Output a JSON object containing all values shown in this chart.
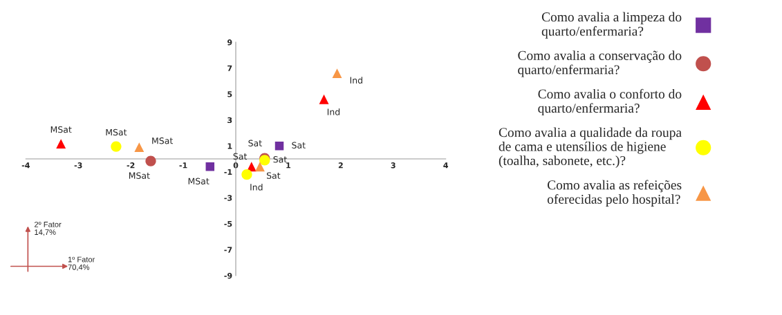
{
  "chart_data": {
    "type": "scatter",
    "xlim": [
      -4,
      4
    ],
    "xticks": [
      -4,
      -3,
      -2,
      -1,
      0,
      1,
      2,
      3,
      4
    ],
    "ylim": [
      -9,
      9
    ],
    "yticks": [
      -9,
      -7,
      -5,
      -3,
      -1,
      1,
      3,
      5,
      7,
      9
    ],
    "grid": false,
    "legend": "right",
    "series": [
      {
        "name": "Como avalia a limpeza do\nquarto/enfermaria?",
        "color": "#7030a0",
        "marker": "square",
        "x": [
          -0.49,
          0.83
        ],
        "values": [
          -0.59,
          1.0
        ],
        "value_labels": [
          "MSat",
          "Sat"
        ]
      },
      {
        "name": "Como avalia a conservação do\nquarto/enfermaria?",
        "color": "#c0504d",
        "marker": "circle",
        "x": [
          -1.62,
          0.55
        ],
        "values": [
          -0.16,
          0.05
        ],
        "value_labels": [
          "MSat",
          "Sat"
        ]
      },
      {
        "name": "Como avalia o conforto do\nquarto/enfermaria?",
        "color": "#ff0000",
        "marker": "triangle",
        "x": [
          -3.33,
          1.68,
          0.3
        ],
        "values": [
          1.17,
          4.6,
          -0.6
        ],
        "value_labels": [
          "MSat",
          "Ind",
          "Sat"
        ]
      },
      {
        "name": "Como avalia a qualidade da roupa\nde cama e utensílios de higiene\n(toalha, sabonete, etc.)?",
        "color": "#ffff00",
        "marker": "circle",
        "x": [
          -2.28,
          0.55,
          0.21
        ],
        "values": [
          0.96,
          -0.1,
          -1.2
        ],
        "value_labels": [
          "MSat",
          "Sat",
          "Ind"
        ]
      },
      {
        "name": "Como avalia as refeições\noferecidas pelo hospital?",
        "color": "#f79646",
        "marker": "triangle",
        "x": [
          -1.84,
          1.93,
          0.46
        ],
        "values": [
          0.9,
          6.6,
          -0.6
        ],
        "value_labels": [
          "MSat",
          "Ind",
          "Sat"
        ]
      }
    ],
    "annotations": [
      "2º Fator\n14,7%",
      "1º Fator\n70,4%"
    ]
  }
}
